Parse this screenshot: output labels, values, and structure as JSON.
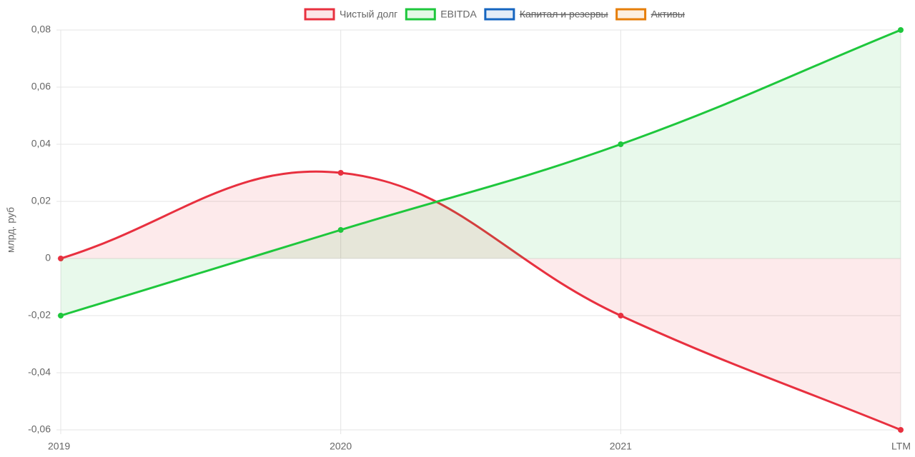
{
  "chart_data": {
    "type": "line",
    "y_label": "млрд. руб",
    "categories": [
      "2019",
      "2020",
      "2021",
      "LTM"
    ],
    "series": [
      {
        "name": "Чистый долг",
        "color": "#e8303f",
        "values": [
          0,
          0.03,
          -0.02,
          -0.06
        ]
      },
      {
        "name": "EBITDA",
        "color": "#1ec73c",
        "values": [
          -0.02,
          0.01,
          0.04,
          0.08
        ]
      },
      {
        "name": "Капитал и резервы",
        "color": "#1565c0",
        "hidden": true,
        "values": [
          null,
          null,
          null,
          null
        ]
      },
      {
        "name": "Активы",
        "color": "#e67e0a",
        "hidden": true,
        "values": [
          null,
          null,
          null,
          null
        ]
      }
    ],
    "ylim": [
      -0.06,
      0.08
    ],
    "yticks": [
      {
        "value": -0.06,
        "label": "-0,06"
      },
      {
        "value": -0.04,
        "label": "-0,04"
      },
      {
        "value": -0.02,
        "label": "-0,02"
      },
      0,
      {
        "value": 0.02,
        "label": "0,02"
      },
      {
        "value": 0.04,
        "label": "0,04"
      },
      {
        "value": 0.06,
        "label": "0,06"
      },
      {
        "value": 0.08,
        "label": "0,08"
      }
    ],
    "grid": true,
    "legend": "top",
    "fill": "origin",
    "smooth": true
  }
}
